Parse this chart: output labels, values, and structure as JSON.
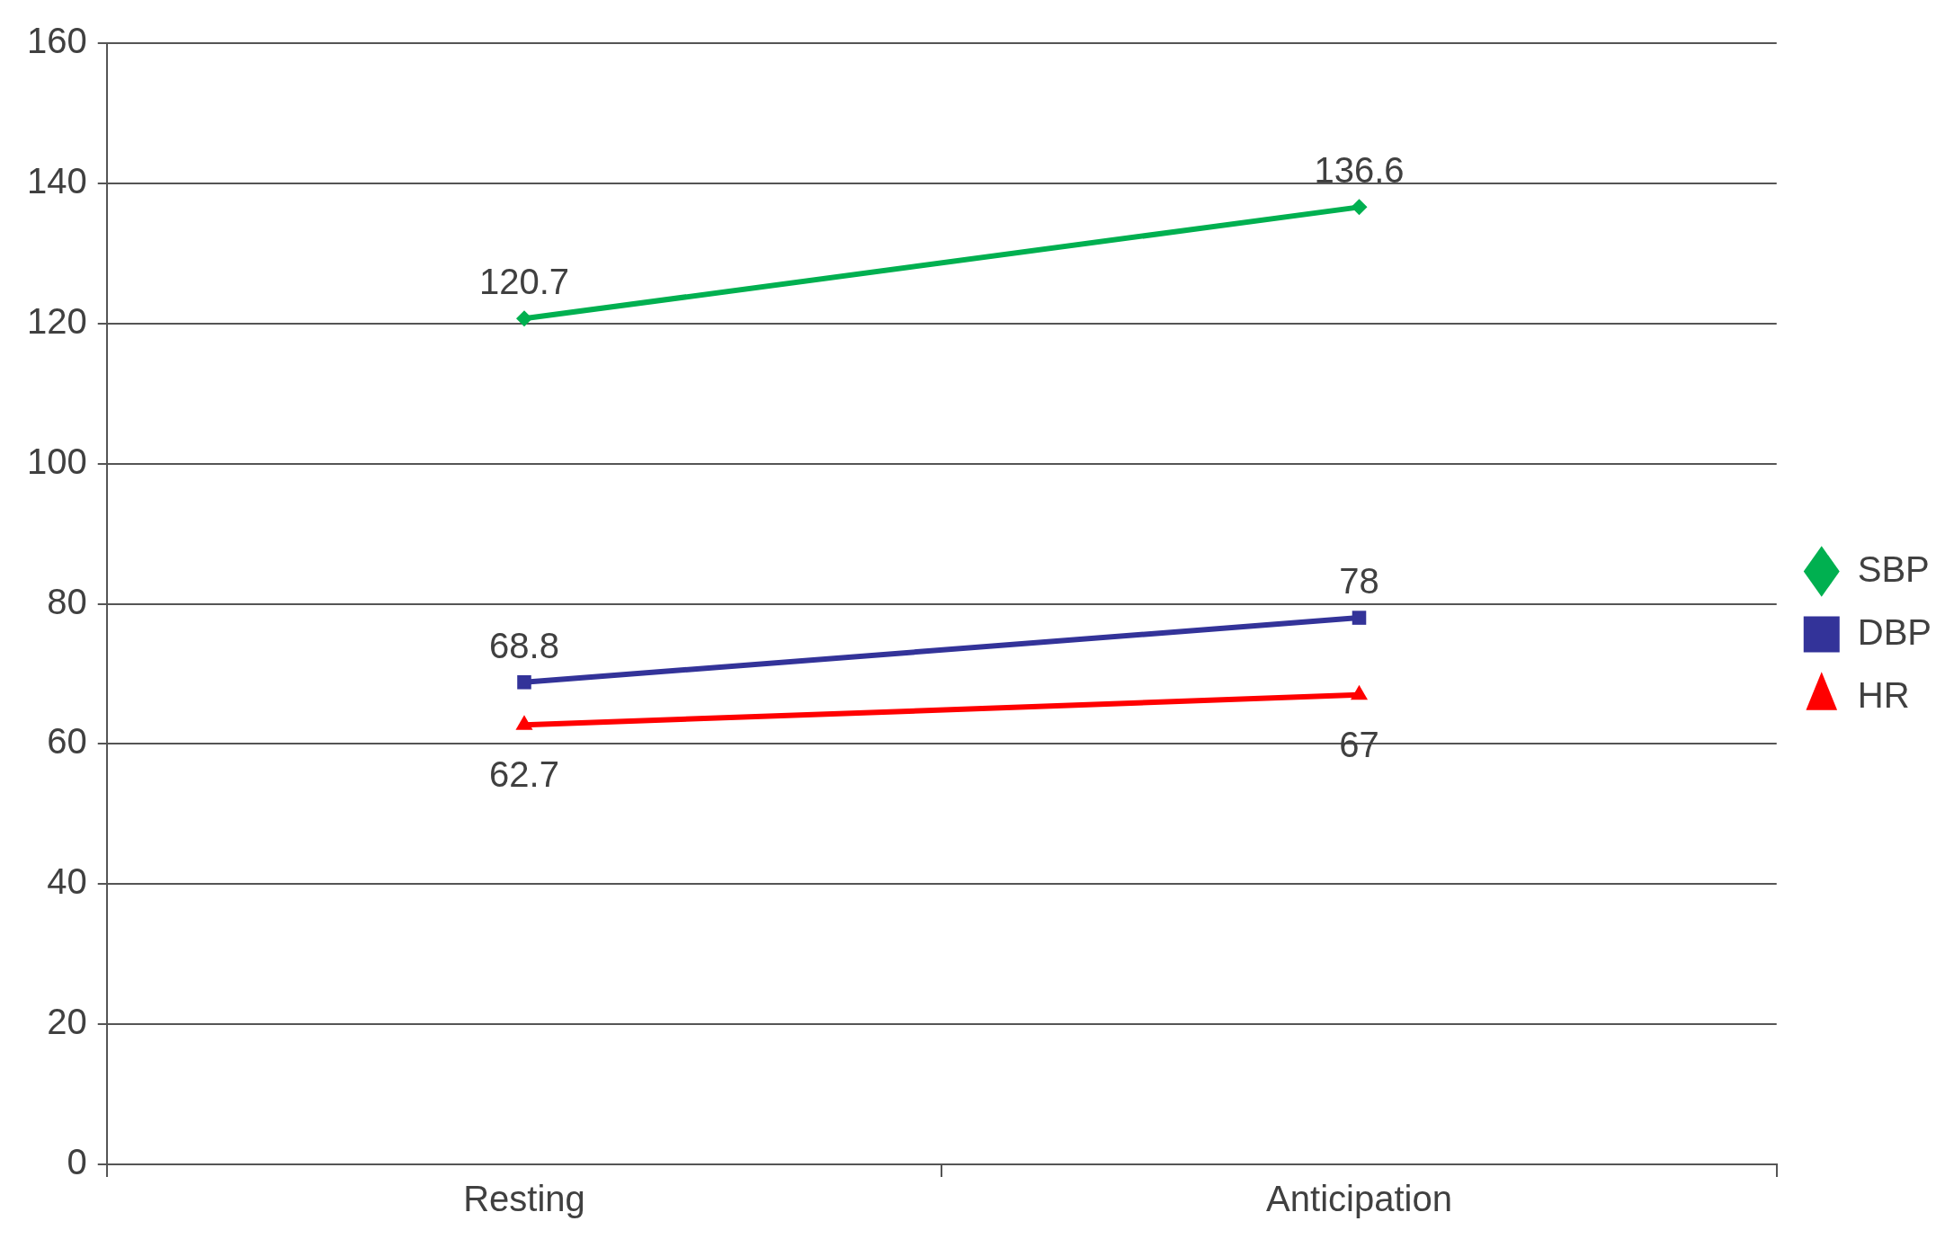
{
  "chart_data": {
    "type": "line",
    "categories": [
      "Resting",
      "Anticipation"
    ],
    "series": [
      {
        "name": "SBP",
        "color": "#00b050",
        "marker": "diamond",
        "values": [
          120.7,
          136.6
        ]
      },
      {
        "name": "DBP",
        "color": "#333399",
        "marker": "square",
        "values": [
          68.8,
          78
        ]
      },
      {
        "name": "HR",
        "color": "#ff0000",
        "marker": "triangle",
        "values": [
          62.7,
          67
        ]
      }
    ],
    "ylim": [
      0,
      160
    ],
    "yticks": [
      0,
      20,
      40,
      60,
      80,
      100,
      120,
      140,
      160
    ],
    "grid": "y",
    "legend": "right",
    "data_labels": true,
    "line_style": "solid"
  }
}
